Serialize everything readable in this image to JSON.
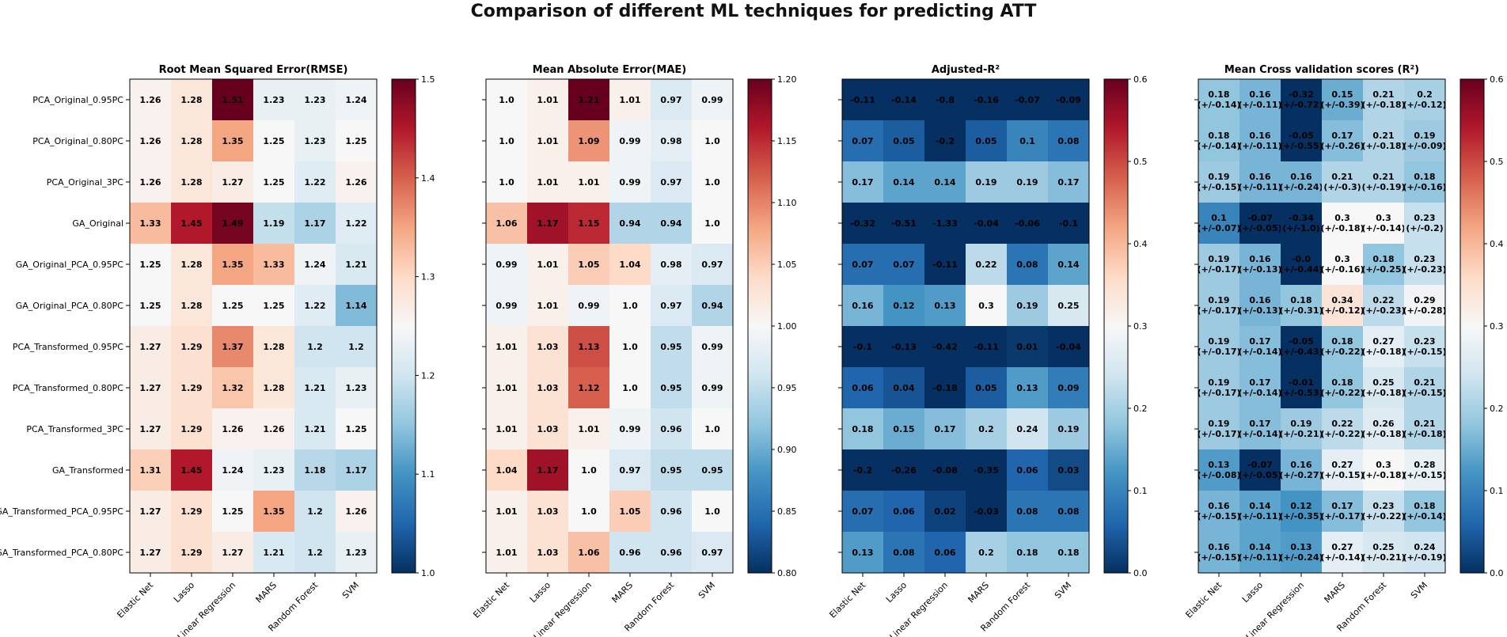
{
  "suptitle": "Comparison of different ML techniques for predicting ATT",
  "chart_data": [
    {
      "type": "heatmap",
      "title": "Root Mean Squared Error(RMSE)",
      "colormap": "RdBu_r",
      "vmin": 1.0,
      "vmax": 1.5,
      "colorbar_ticks": [
        "1.0",
        "1.1",
        "1.2",
        "1.3",
        "1.4",
        "1.5"
      ],
      "rows": [
        "PCA_Original_0.95PC",
        "PCA_Original_0.80PC",
        "PCA_Original_3PC",
        "GA_Original",
        "GA_Original_PCA_0.95PC",
        "GA_Original_PCA_0.80PC",
        "PCA_Transformed_0.95PC",
        "PCA_Transformed_0.80PC",
        "PCA_Transformed_3PC",
        "GA_Transformed",
        "GA_Transformed_PCA_0.95PC",
        "GA_Transformed_PCA_0.80PC"
      ],
      "columns": [
        "Elastic Net",
        "Lasso",
        "Linear Regression",
        "MARS",
        "Random Forest",
        "SVM"
      ],
      "values": [
        [
          1.26,
          1.28,
          1.51,
          1.23,
          1.23,
          1.24
        ],
        [
          1.26,
          1.28,
          1.35,
          1.25,
          1.23,
          1.25
        ],
        [
          1.26,
          1.28,
          1.27,
          1.25,
          1.22,
          1.26
        ],
        [
          1.33,
          1.45,
          1.49,
          1.19,
          1.17,
          1.22
        ],
        [
          1.25,
          1.28,
          1.35,
          1.33,
          1.24,
          1.21
        ],
        [
          1.25,
          1.28,
          1.25,
          1.25,
          1.22,
          1.14
        ],
        [
          1.27,
          1.29,
          1.37,
          1.28,
          1.2,
          1.2
        ],
        [
          1.27,
          1.29,
          1.32,
          1.28,
          1.21,
          1.23
        ],
        [
          1.27,
          1.29,
          1.26,
          1.26,
          1.21,
          1.25
        ],
        [
          1.31,
          1.45,
          1.24,
          1.23,
          1.18,
          1.17
        ],
        [
          1.27,
          1.29,
          1.25,
          1.35,
          1.2,
          1.26
        ],
        [
          1.27,
          1.29,
          1.27,
          1.21,
          1.2,
          1.23
        ]
      ],
      "labels": [
        [
          "1.26",
          "1.28",
          "1.51",
          "1.23",
          "1.23",
          "1.24"
        ],
        [
          "1.26",
          "1.28",
          "1.35",
          "1.25",
          "1.23",
          "1.25"
        ],
        [
          "1.26",
          "1.28",
          "1.27",
          "1.25",
          "1.22",
          "1.26"
        ],
        [
          "1.33",
          "1.45",
          "1.49",
          "1.19",
          "1.17",
          "1.22"
        ],
        [
          "1.25",
          "1.28",
          "1.35",
          "1.33",
          "1.24",
          "1.21"
        ],
        [
          "1.25",
          "1.28",
          "1.25",
          "1.25",
          "1.22",
          "1.14"
        ],
        [
          "1.27",
          "1.29",
          "1.37",
          "1.28",
          "1.2",
          "1.2"
        ],
        [
          "1.27",
          "1.29",
          "1.32",
          "1.28",
          "1.21",
          "1.23"
        ],
        [
          "1.27",
          "1.29",
          "1.26",
          "1.26",
          "1.21",
          "1.25"
        ],
        [
          "1.31",
          "1.45",
          "1.24",
          "1.23",
          "1.18",
          "1.17"
        ],
        [
          "1.27",
          "1.29",
          "1.25",
          "1.35",
          "1.2",
          "1.26"
        ],
        [
          "1.27",
          "1.29",
          "1.27",
          "1.21",
          "1.2",
          "1.23"
        ]
      ]
    },
    {
      "type": "heatmap",
      "title": "Mean Absolute Error(MAE)",
      "colormap": "RdBu_r",
      "vmin": 0.8,
      "vmax": 1.2,
      "colorbar_ticks": [
        "0.80",
        "0.85",
        "0.90",
        "0.95",
        "1.00",
        "1.05",
        "1.10",
        "1.15",
        "1.20"
      ],
      "rows": [
        "PCA_Original_0.95PC",
        "PCA_Original_0.80PC",
        "PCA_Original_3PC",
        "GA_Original",
        "GA_Original_PCA_0.95PC",
        "GA_Original_PCA_0.80PC",
        "PCA_Transformed_0.95PC",
        "PCA_Transformed_0.80PC",
        "PCA_Transformed_3PC",
        "GA_Transformed",
        "GA_Transformed_PCA_0.95PC",
        "GA_Transformed_PCA_0.80PC"
      ],
      "columns": [
        "Elastic Net",
        "Lasso",
        "Linear Regression",
        "MARS",
        "Random Forest",
        "SVM"
      ],
      "values": [
        [
          1.0,
          1.01,
          1.21,
          1.01,
          0.97,
          0.99
        ],
        [
          1.0,
          1.01,
          1.09,
          0.99,
          0.98,
          1.0
        ],
        [
          1.0,
          1.01,
          1.01,
          0.99,
          0.97,
          1.0
        ],
        [
          1.06,
          1.17,
          1.15,
          0.94,
          0.94,
          1.0
        ],
        [
          0.99,
          1.01,
          1.05,
          1.04,
          0.98,
          0.97
        ],
        [
          0.99,
          1.01,
          0.99,
          1.0,
          0.97,
          0.94
        ],
        [
          1.01,
          1.03,
          1.13,
          1.0,
          0.95,
          0.99
        ],
        [
          1.01,
          1.03,
          1.12,
          1.0,
          0.95,
          0.99
        ],
        [
          1.01,
          1.03,
          1.01,
          0.99,
          0.96,
          1.0
        ],
        [
          1.04,
          1.17,
          1.0,
          0.97,
          0.95,
          0.95
        ],
        [
          1.01,
          1.03,
          1.0,
          1.05,
          0.96,
          1.0
        ],
        [
          1.01,
          1.03,
          1.06,
          0.96,
          0.96,
          0.97
        ]
      ],
      "labels": [
        [
          "1.0",
          "1.01",
          "1.21",
          "1.01",
          "0.97",
          "0.99"
        ],
        [
          "1.0",
          "1.01",
          "1.09",
          "0.99",
          "0.98",
          "1.0"
        ],
        [
          "1.0",
          "1.01",
          "1.01",
          "0.99",
          "0.97",
          "1.0"
        ],
        [
          "1.06",
          "1.17",
          "1.15",
          "0.94",
          "0.94",
          "1.0"
        ],
        [
          "0.99",
          "1.01",
          "1.05",
          "1.04",
          "0.98",
          "0.97"
        ],
        [
          "0.99",
          "1.01",
          "0.99",
          "1.0",
          "0.97",
          "0.94"
        ],
        [
          "1.01",
          "1.03",
          "1.13",
          "1.0",
          "0.95",
          "0.99"
        ],
        [
          "1.01",
          "1.03",
          "1.12",
          "1.0",
          "0.95",
          "0.99"
        ],
        [
          "1.01",
          "1.03",
          "1.01",
          "0.99",
          "0.96",
          "1.0"
        ],
        [
          "1.04",
          "1.17",
          "1.0",
          "0.97",
          "0.95",
          "0.95"
        ],
        [
          "1.01",
          "1.03",
          "1.0",
          "1.05",
          "0.96",
          "1.0"
        ],
        [
          "1.01",
          "1.03",
          "1.06",
          "0.96",
          "0.96",
          "0.97"
        ]
      ]
    },
    {
      "type": "heatmap",
      "title": "Adjusted-R²",
      "colormap": "RdBu_r",
      "vmin": 0.0,
      "vmax": 0.6,
      "colorbar_ticks": [
        "0.0",
        "0.1",
        "0.2",
        "0.3",
        "0.4",
        "0.5",
        "0.6"
      ],
      "rows": [
        "PCA_Original_0.95PC",
        "PCA_Original_0.80PC",
        "PCA_Original_3PC",
        "GA_Original",
        "GA_Original_PCA_0.95PC",
        "GA_Original_PCA_0.80PC",
        "PCA_Transformed_0.95PC",
        "PCA_Transformed_0.80PC",
        "PCA_Transformed_3PC",
        "GA_Transformed",
        "GA_Transformed_PCA_0.95PC",
        "GA_Transformed_PCA_0.80PC"
      ],
      "columns": [
        "Elastic Net",
        "Lasso",
        "Linear Regression",
        "MARS",
        "Random Forest",
        "SVM"
      ],
      "values": [
        [
          -0.11,
          -0.14,
          -0.8,
          -0.16,
          -0.07,
          -0.09
        ],
        [
          0.07,
          0.05,
          -0.2,
          0.05,
          0.1,
          0.08
        ],
        [
          0.17,
          0.14,
          0.14,
          0.19,
          0.19,
          0.17
        ],
        [
          -0.32,
          -0.51,
          -1.33,
          -0.04,
          -0.06,
          -0.1
        ],
        [
          0.07,
          0.07,
          -0.11,
          0.22,
          0.08,
          0.14
        ],
        [
          0.16,
          0.12,
          0.13,
          0.3,
          0.19,
          0.25
        ],
        [
          -0.1,
          -0.13,
          -0.42,
          -0.11,
          0.01,
          -0.04
        ],
        [
          0.06,
          0.04,
          -0.18,
          0.05,
          0.13,
          0.09
        ],
        [
          0.18,
          0.15,
          0.17,
          0.2,
          0.24,
          0.19
        ],
        [
          -0.2,
          -0.26,
          -0.08,
          -0.35,
          0.06,
          0.03
        ],
        [
          0.07,
          0.06,
          0.02,
          -0.03,
          0.08,
          0.08
        ],
        [
          0.13,
          0.08,
          0.06,
          0.2,
          0.18,
          0.18
        ]
      ],
      "labels": [
        [
          "-0.11",
          "-0.14",
          "-0.8",
          "-0.16",
          "-0.07",
          "-0.09"
        ],
        [
          "0.07",
          "0.05",
          "-0.2",
          "0.05",
          "0.1",
          "0.08"
        ],
        [
          "0.17",
          "0.14",
          "0.14",
          "0.19",
          "0.19",
          "0.17"
        ],
        [
          "-0.32",
          "-0.51",
          "-1.33",
          "-0.04",
          "-0.06",
          "-0.1"
        ],
        [
          "0.07",
          "0.07",
          "-0.11",
          "0.22",
          "0.08",
          "0.14"
        ],
        [
          "0.16",
          "0.12",
          "0.13",
          "0.3",
          "0.19",
          "0.25"
        ],
        [
          "-0.1",
          "-0.13",
          "-0.42",
          "-0.11",
          "0.01",
          "-0.04"
        ],
        [
          "0.06",
          "0.04",
          "-0.18",
          "0.05",
          "0.13",
          "0.09"
        ],
        [
          "0.18",
          "0.15",
          "0.17",
          "0.2",
          "0.24",
          "0.19"
        ],
        [
          "-0.2",
          "-0.26",
          "-0.08",
          "-0.35",
          "0.06",
          "0.03"
        ],
        [
          "0.07",
          "0.06",
          "0.02",
          "-0.03",
          "0.08",
          "0.08"
        ],
        [
          "0.13",
          "0.08",
          "0.06",
          "0.2",
          "0.18",
          "0.18"
        ]
      ]
    },
    {
      "type": "heatmap",
      "title": "Mean Cross validation scores (R²)",
      "colormap": "RdBu_r",
      "vmin": 0.0,
      "vmax": 0.6,
      "colorbar_ticks": [
        "0.0",
        "0.1",
        "0.2",
        "0.3",
        "0.4",
        "0.5",
        "0.6"
      ],
      "rows": [
        "PCA_Original_0.95PC",
        "PCA_Original_0.80PC",
        "PCA_Original_3PC",
        "GA_Original",
        "GA_Original_PCA_0.95PC",
        "GA_Original_PCA_0.80PC",
        "PCA_Transformed_0.95PC",
        "PCA_Transformed_0.80PC",
        "PCA_Transformed_3PC",
        "GA_Transformed",
        "GA_Transformed_PCA_0.95PC",
        "GA_Transformed_PCA_0.80PC"
      ],
      "columns": [
        "Elastic Net",
        "Lasso",
        "Linear Regression",
        "MARS",
        "Random Forest",
        "SVM"
      ],
      "values": [
        [
          0.18,
          0.16,
          -0.32,
          0.15,
          0.21,
          0.2
        ],
        [
          0.18,
          0.16,
          -0.05,
          0.17,
          0.21,
          0.19
        ],
        [
          0.19,
          0.16,
          0.16,
          0.21,
          0.21,
          0.18
        ],
        [
          0.1,
          -0.07,
          -0.34,
          0.3,
          0.3,
          0.23
        ],
        [
          0.19,
          0.16,
          -0.0,
          0.3,
          0.18,
          0.23
        ],
        [
          0.19,
          0.16,
          0.18,
          0.34,
          0.22,
          0.29
        ],
        [
          0.19,
          0.17,
          -0.05,
          0.18,
          0.27,
          0.23
        ],
        [
          0.19,
          0.17,
          -0.01,
          0.18,
          0.25,
          0.21
        ],
        [
          0.19,
          0.17,
          0.19,
          0.22,
          0.26,
          0.21
        ],
        [
          0.13,
          -0.07,
          0.16,
          0.27,
          0.3,
          0.28
        ],
        [
          0.16,
          0.14,
          0.12,
          0.17,
          0.23,
          0.18
        ],
        [
          0.16,
          0.14,
          0.13,
          0.27,
          0.25,
          0.24
        ]
      ],
      "labels": [
        [
          "0.18",
          "0.16",
          "-0.32",
          "0.15",
          "0.21",
          "0.2"
        ],
        [
          "0.18",
          "0.16",
          "-0.05",
          "0.17",
          "0.21",
          "0.19"
        ],
        [
          "0.19",
          "0.16",
          "0.16",
          "0.21",
          "0.21",
          "0.18"
        ],
        [
          "0.1",
          "-0.07",
          "-0.34",
          "0.3",
          "0.3",
          "0.23"
        ],
        [
          "0.19",
          "0.16",
          "-0.0",
          "0.3",
          "0.18",
          "0.23"
        ],
        [
          "0.19",
          "0.16",
          "0.18",
          "0.34",
          "0.22",
          "0.29"
        ],
        [
          "0.19",
          "0.17",
          "-0.05",
          "0.18",
          "0.27",
          "0.23"
        ],
        [
          "0.19",
          "0.17",
          "-0.01",
          "0.18",
          "0.25",
          "0.21"
        ],
        [
          "0.19",
          "0.17",
          "0.19",
          "0.22",
          "0.26",
          "0.21"
        ],
        [
          "0.13",
          "-0.07",
          "0.16",
          "0.27",
          "0.3",
          "0.28"
        ],
        [
          "0.16",
          "0.14",
          "0.12",
          "0.17",
          "0.23",
          "0.18"
        ],
        [
          "0.16",
          "0.14",
          "0.13",
          "0.27",
          "0.25",
          "0.24"
        ]
      ],
      "sublabels": [
        [
          "(+/-0.14)",
          "(+/-0.11)",
          "(+/-0.72)",
          "(+/-0.39)",
          "(+/-0.18)",
          "(+/-0.12)"
        ],
        [
          "(+/-0.14)",
          "(+/-0.11)",
          "(+/-0.55)",
          "(+/-0.26)",
          "(+/-0.18)",
          "(+/-0.09)"
        ],
        [
          "(+/-0.15)",
          "(+/-0.11)",
          "(+/-0.24)",
          "(+/-0.3)",
          "(+/-0.19)",
          "(+/-0.16)"
        ],
        [
          "(+/-0.07)",
          "(+/-0.05)",
          "(+/-1.0)",
          "(+/-0.18)",
          "(+/-0.14)",
          "(+/-0.2)"
        ],
        [
          "(+/-0.17)",
          "(+/-0.13)",
          "(+/-0.44)",
          "(+/-0.16)",
          "(+/-0.25)",
          "(+/-0.23)"
        ],
        [
          "(+/-0.17)",
          "(+/-0.13)",
          "(+/-0.31)",
          "(+/-0.12)",
          "(+/-0.23)",
          "(+/-0.28)"
        ],
        [
          "(+/-0.17)",
          "(+/-0.14)",
          "(+/-0.43)",
          "(+/-0.22)",
          "(+/-0.18)",
          "(+/-0.15)"
        ],
        [
          "(+/-0.17)",
          "(+/-0.14)",
          "(+/-0.53)",
          "(+/-0.22)",
          "(+/-0.18)",
          "(+/-0.15)"
        ],
        [
          "(+/-0.17)",
          "(+/-0.14)",
          "(+/-0.21)",
          "(+/-0.22)",
          "(+/-0.18)",
          "(+/-0.18)"
        ],
        [
          "(+/-0.08)",
          "(+/-0.05)",
          "(+/-0.27)",
          "(+/-0.15)",
          "(+/-0.18)",
          "(+/-0.15)"
        ],
        [
          "(+/-0.15)",
          "(+/-0.11)",
          "(+/-0.35)",
          "(+/-0.17)",
          "(+/-0.22)",
          "(+/-0.14)"
        ],
        [
          "(+/-0.15)",
          "(+/-0.11)",
          "(+/-0.24)",
          "(+/-0.14)",
          "(+/-0.21)",
          "(+/-0.19)"
        ]
      ]
    }
  ]
}
